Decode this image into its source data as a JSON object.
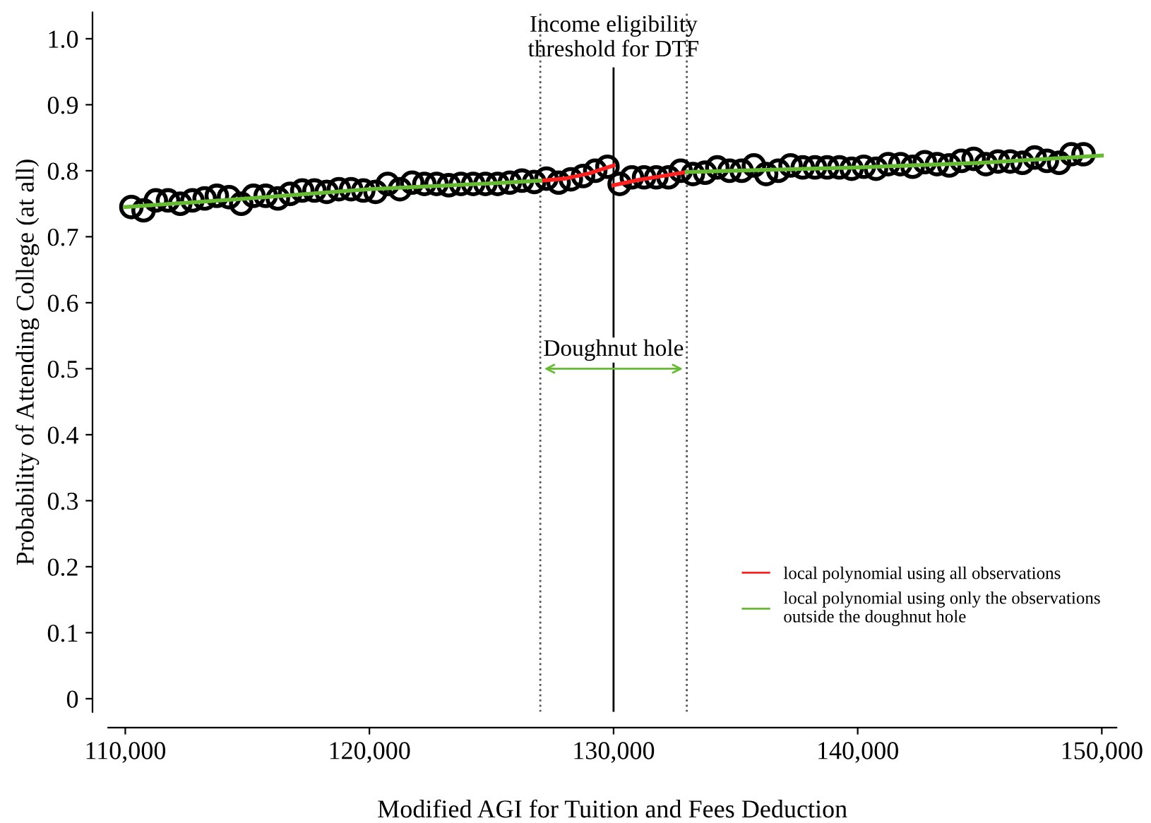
{
  "chart_data": {
    "type": "scatter",
    "xlabel": "Modified AGI for Tuition and Fees Deduction",
    "ylabel": "Probability of Attending College (at all)",
    "xlim": [
      109300,
      150600
    ],
    "xticks": [
      {
        "value": 110000,
        "label": "110,000"
      },
      {
        "value": 120000,
        "label": "120,000"
      },
      {
        "value": 130000,
        "label": "130,000"
      },
      {
        "value": 140000,
        "label": "140,000"
      },
      {
        "value": 150000,
        "label": "150,000"
      }
    ],
    "ylim": [
      -0.02,
      1.04
    ],
    "yticks": [
      0,
      0.1,
      0.2,
      0.3,
      0.4,
      0.5,
      0.6,
      0.7,
      0.8,
      0.9,
      {
        "value": 1.0,
        "label": "1.0"
      }
    ],
    "grid": false,
    "legend": "bottom right",
    "series": [
      {
        "color": "#000000",
        "marker": "circle",
        "x": [
          110250,
          110750,
          111250,
          111750,
          112250,
          112750,
          113250,
          113750,
          114250,
          114750,
          115250,
          115750,
          116250,
          116750,
          117250,
          117750,
          118250,
          118750,
          119250,
          119750,
          120250,
          120750,
          121250,
          121750,
          122250,
          122750,
          123250,
          123750,
          124250,
          124750,
          125250,
          125750,
          126250,
          126750,
          127250,
          127750,
          128250,
          128750,
          129250,
          129750,
          130250,
          130750,
          131250,
          131750,
          132250,
          132750,
          133250,
          133750,
          134250,
          134750,
          135250,
          135750,
          136250,
          136750,
          137250,
          137750,
          138250,
          138750,
          139250,
          139750,
          140250,
          140750,
          141250,
          141750,
          142250,
          142750,
          143250,
          143750,
          144250,
          144750,
          145250,
          145750,
          146250,
          146750,
          147250,
          147750,
          148250,
          148750,
          149250
        ],
        "values": [
          0.745,
          0.74,
          0.755,
          0.755,
          0.75,
          0.755,
          0.758,
          0.762,
          0.76,
          0.75,
          0.762,
          0.762,
          0.758,
          0.765,
          0.77,
          0.77,
          0.768,
          0.772,
          0.772,
          0.77,
          0.768,
          0.78,
          0.772,
          0.782,
          0.78,
          0.78,
          0.778,
          0.78,
          0.78,
          0.78,
          0.78,
          0.782,
          0.785,
          0.783,
          0.788,
          0.782,
          0.787,
          0.792,
          0.8,
          0.806,
          0.78,
          0.79,
          0.79,
          0.79,
          0.79,
          0.8,
          0.795,
          0.797,
          0.805,
          0.8,
          0.8,
          0.808,
          0.795,
          0.8,
          0.808,
          0.805,
          0.805,
          0.805,
          0.805,
          0.803,
          0.806,
          0.803,
          0.81,
          0.81,
          0.806,
          0.813,
          0.81,
          0.808,
          0.815,
          0.818,
          0.81,
          0.814,
          0.814,
          0.812,
          0.82,
          0.815,
          0.812,
          0.825,
          0.825
        ]
      },
      {
        "type": "line",
        "name": "local polynomial using all observations",
        "color": "#ff2020",
        "line_style": "solid",
        "x": [
          127000,
          128000,
          129000,
          130000
        ],
        "values": [
          0.785,
          0.788,
          0.796,
          0.808
        ]
      },
      {
        "type": "line",
        "color": "#ff2020",
        "line_style": "solid",
        "x": [
          130000,
          131000,
          132000,
          133000
        ],
        "values": [
          0.778,
          0.786,
          0.792,
          0.798
        ]
      },
      {
        "type": "line",
        "name": "local polynomial using only the observations\noutside the doughnut hole",
        "color": "#66bb33",
        "line_style": "solid",
        "x": [
          110000,
          115000,
          120000,
          125000,
          127000
        ],
        "values": [
          0.745,
          0.758,
          0.772,
          0.781,
          0.785
        ]
      },
      {
        "type": "line",
        "color": "#66bb33",
        "line_style": "solid",
        "x": [
          133000,
          140000,
          145000,
          150000
        ],
        "values": [
          0.798,
          0.805,
          0.812,
          0.823
        ]
      }
    ],
    "ref_lines": [
      {
        "axis": "x",
        "value": 127000,
        "line_style": "dotted",
        "color": "#555555"
      },
      {
        "axis": "x",
        "value": 130000,
        "line_style": "solid",
        "color": "#000000",
        "label": "Income eligibility\nthreshold for DTF"
      },
      {
        "axis": "x",
        "value": 133000,
        "line_style": "dotted",
        "color": "#555555"
      }
    ],
    "annotations": [
      {
        "text": "Doughnut hole",
        "x": 130000,
        "y": 0.5
      }
    ]
  }
}
